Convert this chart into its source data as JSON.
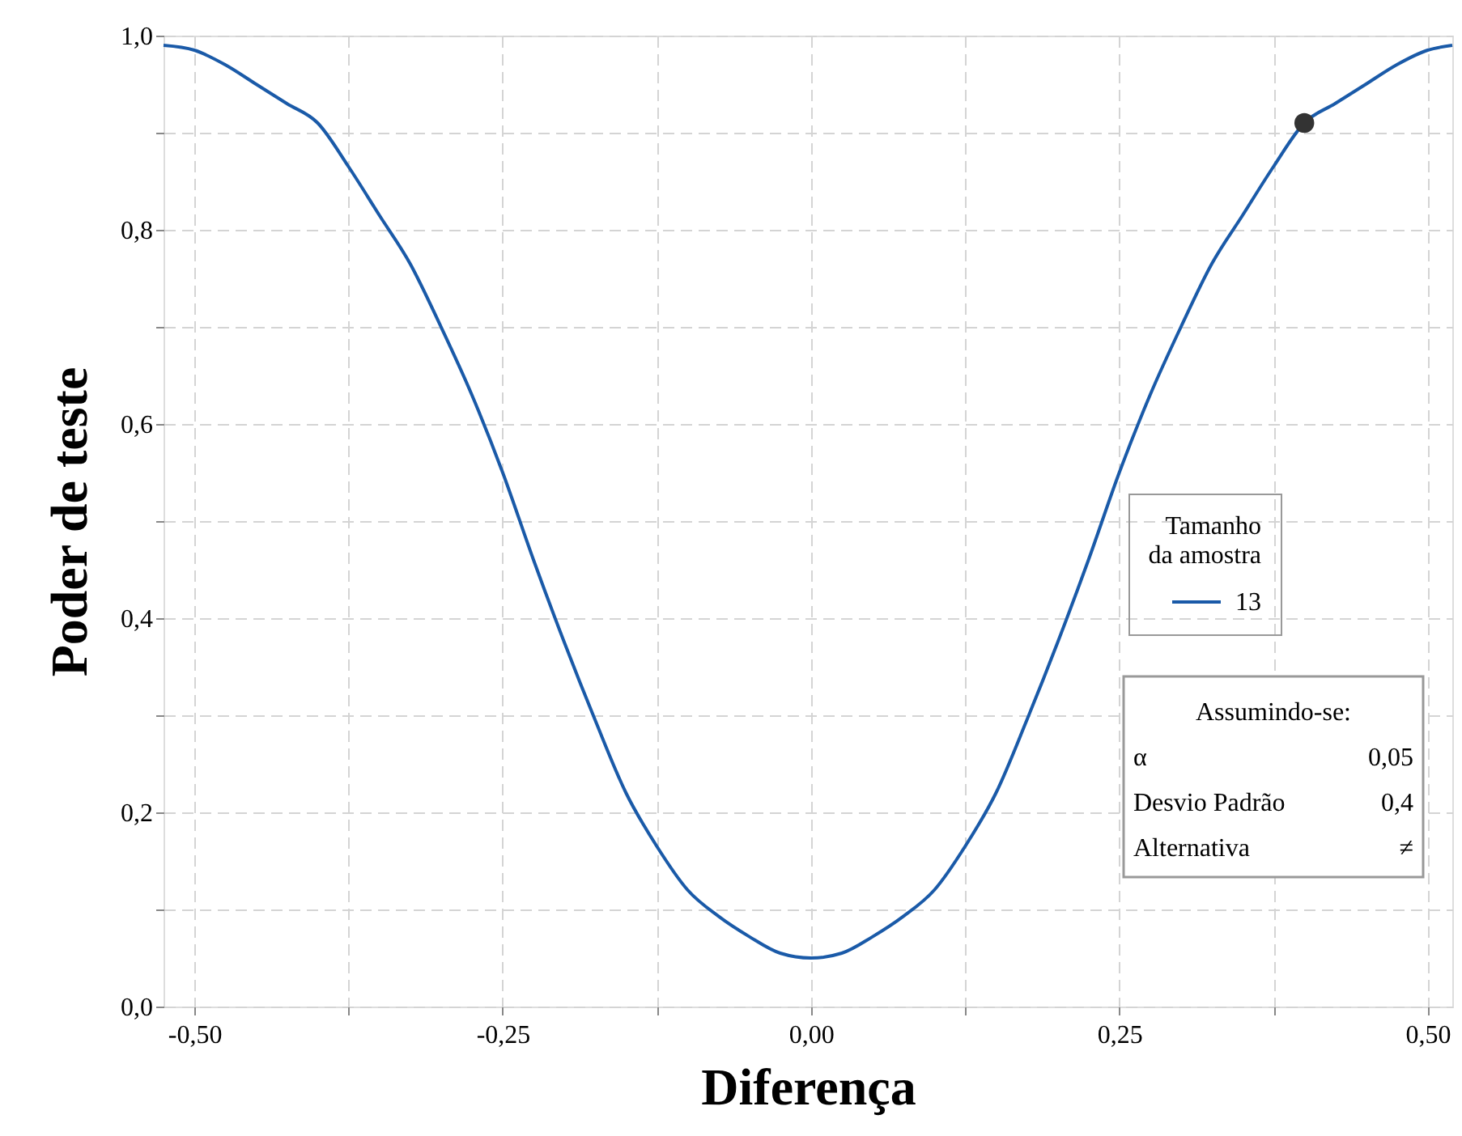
{
  "chart_data": {
    "type": "line",
    "xlabel": "Diferença",
    "ylabel": "Poder de teste",
    "legend_title": "Tamanho da amostra",
    "xlim": [
      -0.525,
      0.52
    ],
    "ylim": [
      0,
      1
    ],
    "xticks": [
      {
        "value": -0.5,
        "label": "-0,50"
      },
      {
        "value": -0.375,
        "label": null
      },
      {
        "value": -0.25,
        "label": "-0,25"
      },
      {
        "value": -0.125,
        "label": null
      },
      {
        "value": 0,
        "label": "0,00"
      },
      {
        "value": 0.125,
        "label": null
      },
      {
        "value": 0.25,
        "label": "0,25"
      },
      {
        "value": 0.375,
        "label": null
      },
      {
        "value": 0.5,
        "label": "0,50"
      }
    ],
    "yticks": [
      {
        "value": 0,
        "label": "0,0"
      },
      {
        "value": 0.1,
        "label": null
      },
      {
        "value": 0.2,
        "label": "0,2"
      },
      {
        "value": 0.3,
        "label": null
      },
      {
        "value": 0.4,
        "label": "0,4"
      },
      {
        "value": 0.5,
        "label": null
      },
      {
        "value": 0.6,
        "label": "0,6"
      },
      {
        "value": 0.7,
        "label": null
      },
      {
        "value": 0.8,
        "label": "0,8"
      },
      {
        "value": 0.9,
        "label": null
      },
      {
        "value": 1,
        "label": "1,0"
      }
    ],
    "grid": true,
    "legend": "right",
    "line_style": "solid",
    "series": [
      {
        "name": "13",
        "color": "#1a5aa8",
        "x": [
          -0.525,
          -0.5,
          -0.475,
          -0.45,
          -0.425,
          -0.4,
          -0.375,
          -0.35,
          -0.325,
          -0.3,
          -0.275,
          -0.25,
          -0.225,
          -0.2,
          -0.175,
          -0.15,
          -0.125,
          -0.1,
          -0.075,
          -0.05,
          -0.025,
          0,
          0.025,
          0.05,
          0.075,
          0.1,
          0.125,
          0.15,
          0.175,
          0.2,
          0.225,
          0.25,
          0.275,
          0.3,
          0.325,
          0.35,
          0.375,
          0.4,
          0.425,
          0.45,
          0.475,
          0.5,
          0.52
        ],
        "values": [
          0.99,
          0.985,
          0.97,
          0.95,
          0.93,
          0.91,
          0.865,
          0.815,
          0.765,
          0.7,
          0.63,
          0.55,
          0.46,
          0.375,
          0.295,
          0.22,
          0.165,
          0.12,
          0.093,
          0.072,
          0.055,
          0.05,
          0.055,
          0.072,
          0.093,
          0.12,
          0.165,
          0.22,
          0.295,
          0.375,
          0.46,
          0.55,
          0.63,
          0.7,
          0.765,
          0.815,
          0.865,
          0.91,
          0.93,
          0.95,
          0.97,
          0.985,
          0.99
        ]
      },
      {
        "type": "scatter",
        "marker": "circle",
        "color": "#333333",
        "x": [
          0.4
        ],
        "values": [
          0.91
        ]
      }
    ],
    "annotations": [
      "Assumindo-se:",
      "α",
      "0,05",
      "Desvio Padrão",
      "0,4",
      "Alternativa",
      "≠"
    ]
  }
}
